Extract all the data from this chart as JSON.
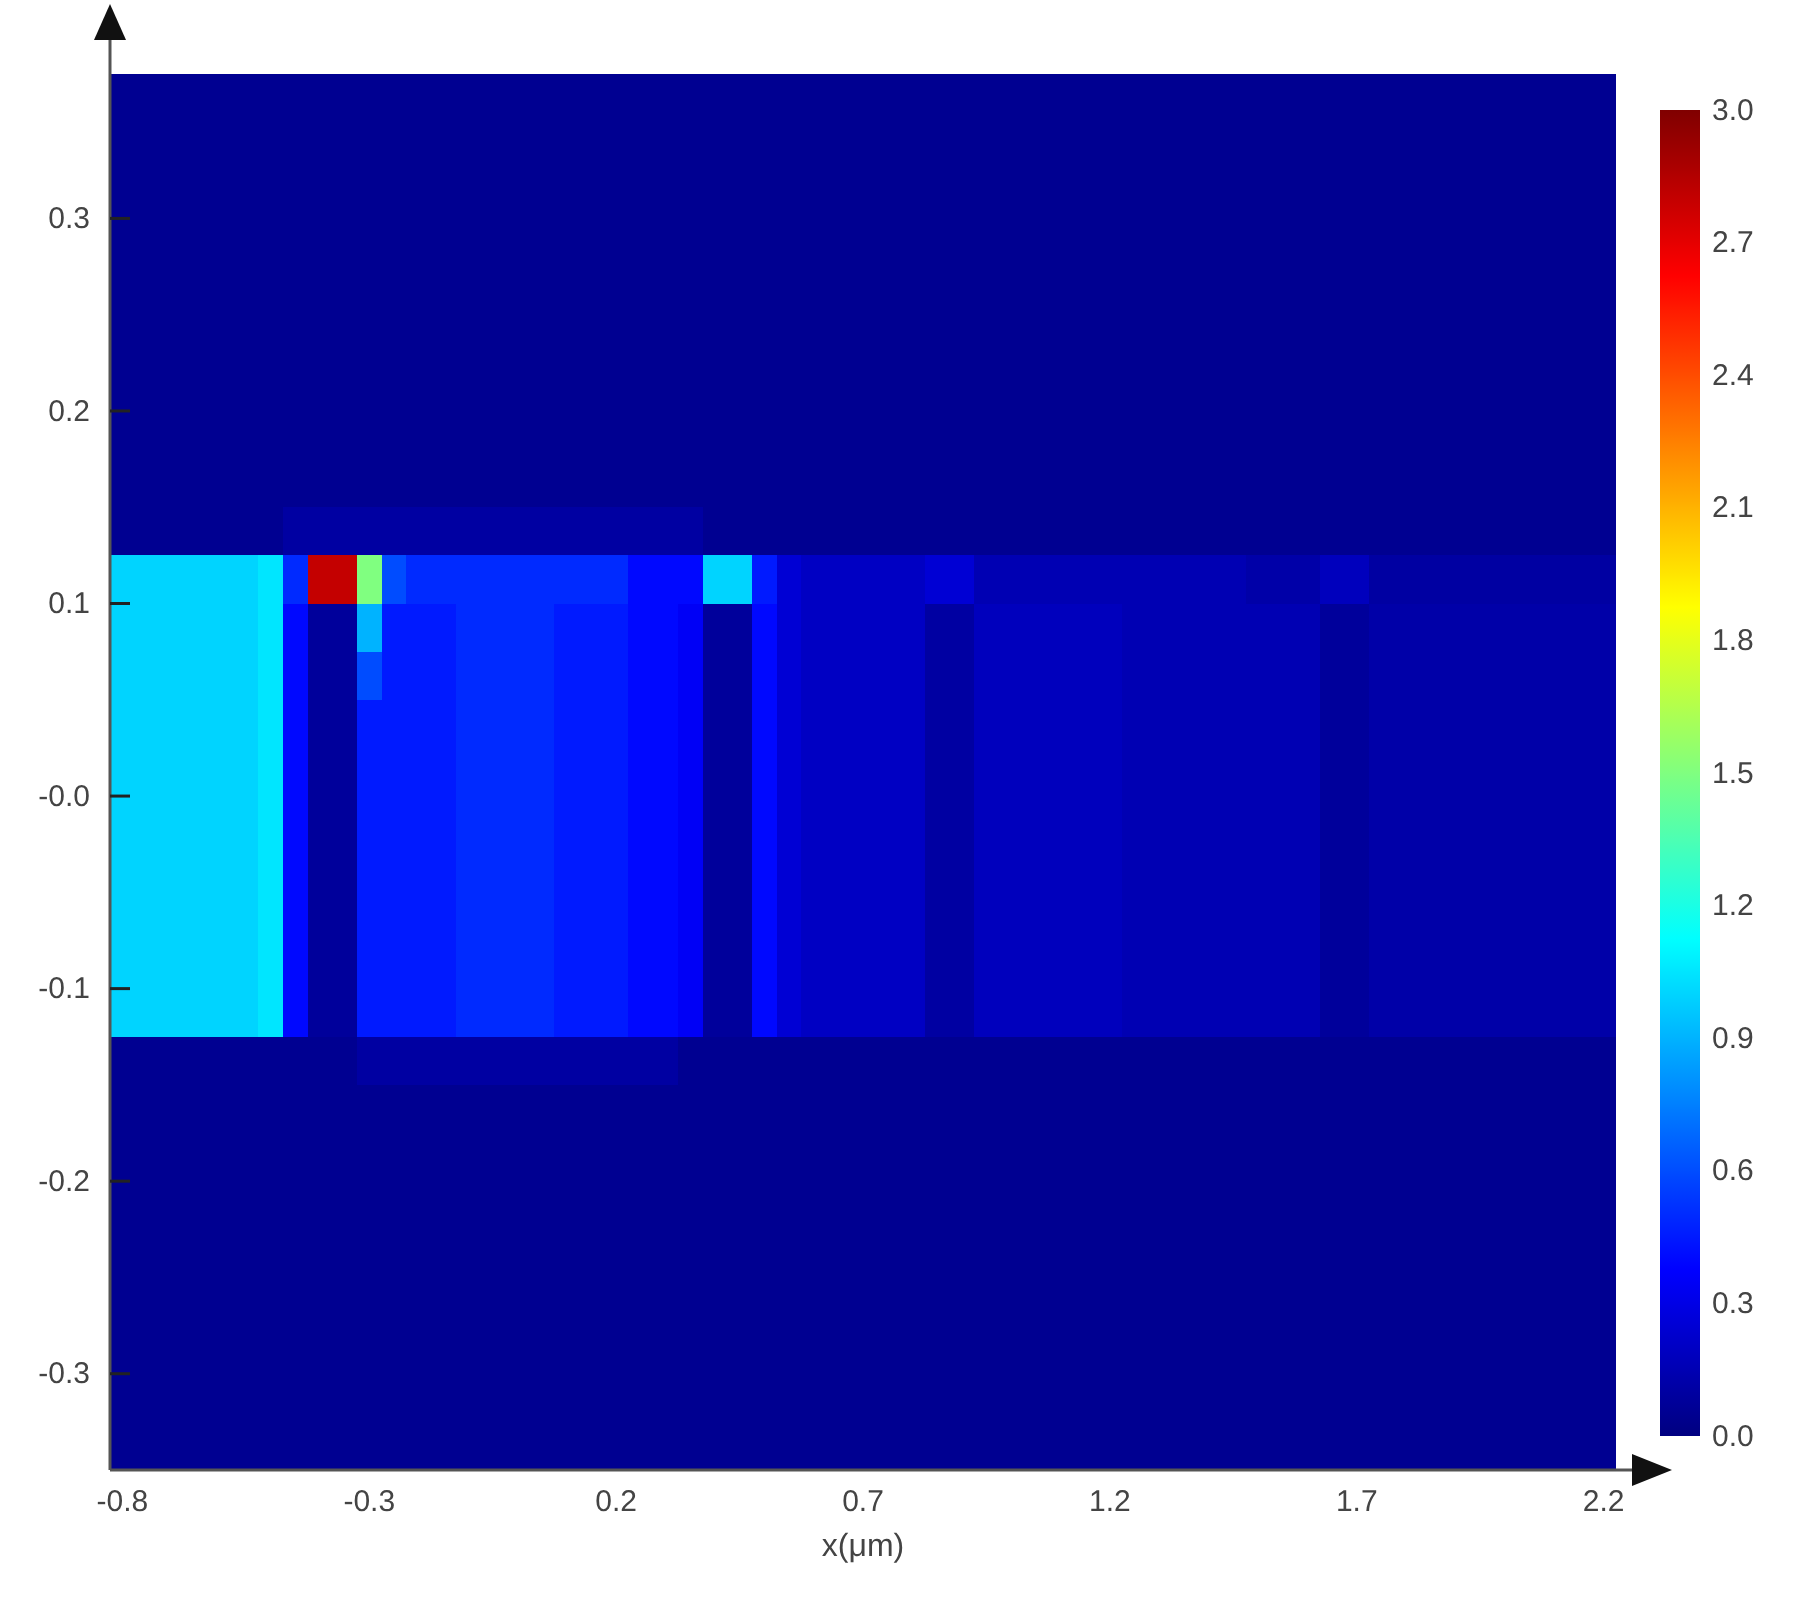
{
  "chart_data": {
    "type": "heatmap",
    "xlabel": "x(μm)",
    "x": [
      -0.8,
      -0.75,
      -0.7,
      -0.65,
      -0.6,
      -0.55,
      -0.5,
      -0.45,
      -0.4,
      -0.35,
      -0.3,
      -0.25,
      -0.2,
      -0.15,
      -0.1,
      -0.05,
      0,
      0.05,
      0.1,
      0.15,
      0.2,
      0.25,
      0.3,
      0.35,
      0.4,
      0.45,
      0.5,
      0.55,
      0.6,
      0.65,
      0.7,
      0.75,
      0.8,
      0.85,
      0.9,
      0.95,
      1,
      1.05,
      1.1,
      1.15,
      1.2,
      1.25,
      1.3,
      1.35,
      1.4,
      1.45,
      1.5,
      1.55,
      1.6,
      1.65,
      1.7,
      1.75,
      1.8,
      1.85,
      1.9,
      1.95,
      2,
      2.05,
      2.1,
      2.15,
      2.2
    ],
    "xlim": [
      -0.825,
      2.225
    ],
    "xticks": [
      -0.8,
      -0.3,
      0.2,
      0.7,
      1.2,
      1.7,
      2.2
    ],
    "ylim": [
      -0.35,
      0.375
    ],
    "yticks": [
      -0.3,
      -0.2,
      -0.1,
      {
        "value": 0,
        "label": "-0.0"
      },
      0.1,
      0.2,
      0.3
    ],
    "clim": [
      0,
      3
    ],
    "cticks": [
      {
        "value": 0,
        "label": "0.0"
      },
      0.3,
      0.6,
      0.9,
      1.2,
      1.5,
      1.8,
      2.1,
      2.4,
      2.7,
      {
        "value": 3,
        "label": "3.0"
      }
    ],
    "cells": [
      [
        0.05,
        0.05,
        0.05,
        0.05,
        0.05,
        0.05,
        0.05,
        0.05,
        0.05,
        0.05,
        0.05,
        0.05,
        0.05,
        0.05,
        0.05,
        0.05,
        0.05,
        0.05,
        0.05,
        0.05,
        0.05,
        0.05,
        0.05,
        0.05,
        0.05,
        0.05,
        0.05,
        0.05,
        0.05,
        0.05,
        0.05,
        0.05,
        0.05,
        0.05,
        0.05,
        0.05,
        0.05,
        0.05,
        0.05,
        0.05,
        0.05,
        0.05,
        0.05,
        0.05,
        0.05,
        0.05,
        0.05,
        0.05,
        0.05,
        0.05,
        0.05,
        0.05,
        0.05,
        0.05,
        0.05,
        0.05,
        0.05,
        0.05,
        0.05,
        0.05,
        0.05
      ],
      [
        0.05,
        0.05,
        0.05,
        0.05,
        0.05,
        0.05,
        0.05,
        0.05,
        0.05,
        0.05,
        0.05,
        0.05,
        0.05,
        0.05,
        0.05,
        0.05,
        0.05,
        0.05,
        0.05,
        0.05,
        0.05,
        0.05,
        0.05,
        0.05,
        0.05,
        0.05,
        0.05,
        0.05,
        0.05,
        0.05,
        0.05,
        0.05,
        0.05,
        0.05,
        0.05,
        0.05,
        0.05,
        0.05,
        0.05,
        0.05,
        0.05,
        0.05,
        0.05,
        0.05,
        0.05,
        0.05,
        0.05,
        0.05,
        0.05,
        0.05,
        0.05,
        0.05,
        0.05,
        0.05,
        0.05,
        0.05,
        0.05,
        0.05,
        0.05,
        0.05,
        0.05
      ],
      [
        0.05,
        0.05,
        0.05,
        0.05,
        0.05,
        0.05,
        0.05,
        0.05,
        0.05,
        0.05,
        0.05,
        0.05,
        0.05,
        0.05,
        0.05,
        0.05,
        0.05,
        0.05,
        0.05,
        0.05,
        0.05,
        0.05,
        0.05,
        0.05,
        0.05,
        0.05,
        0.05,
        0.05,
        0.05,
        0.05,
        0.05,
        0.05,
        0.05,
        0.05,
        0.05,
        0.05,
        0.05,
        0.05,
        0.05,
        0.05,
        0.05,
        0.05,
        0.05,
        0.05,
        0.05,
        0.05,
        0.05,
        0.05,
        0.05,
        0.05,
        0.05,
        0.05,
        0.05,
        0.05,
        0.05,
        0.05,
        0.05,
        0.05,
        0.05,
        0.05,
        0.05
      ],
      [
        0.05,
        0.05,
        0.05,
        0.05,
        0.05,
        0.05,
        0.05,
        0.05,
        0.05,
        0.05,
        0.05,
        0.05,
        0.05,
        0.05,
        0.05,
        0.05,
        0.05,
        0.05,
        0.05,
        0.05,
        0.05,
        0.05,
        0.05,
        0.05,
        0.05,
        0.05,
        0.05,
        0.05,
        0.05,
        0.05,
        0.05,
        0.05,
        0.05,
        0.05,
        0.05,
        0.05,
        0.05,
        0.05,
        0.05,
        0.05,
        0.05,
        0.05,
        0.05,
        0.05,
        0.05,
        0.05,
        0.05,
        0.05,
        0.05,
        0.05,
        0.05,
        0.05,
        0.05,
        0.05,
        0.05,
        0.05,
        0.05,
        0.05,
        0.05,
        0.05,
        0.05
      ],
      [
        0.05,
        0.05,
        0.05,
        0.05,
        0.05,
        0.05,
        0.05,
        0.05,
        0.05,
        0.05,
        0.05,
        0.05,
        0.05,
        0.05,
        0.05,
        0.05,
        0.05,
        0.05,
        0.05,
        0.05,
        0.05,
        0.05,
        0.05,
        0.05,
        0.05,
        0.05,
        0.05,
        0.05,
        0.05,
        0.05,
        0.05,
        0.05,
        0.05,
        0.05,
        0.05,
        0.05,
        0.05,
        0.05,
        0.05,
        0.05,
        0.05,
        0.05,
        0.05,
        0.05,
        0.05,
        0.05,
        0.05,
        0.05,
        0.05,
        0.05,
        0.05,
        0.05,
        0.05,
        0.05,
        0.05,
        0.05,
        0.05,
        0.05,
        0.05,
        0.05,
        0.05
      ],
      [
        0.05,
        0.05,
        0.05,
        0.05,
        0.05,
        0.05,
        0.05,
        0.05,
        0.05,
        0.05,
        0.05,
        0.05,
        0.05,
        0.05,
        0.05,
        0.05,
        0.05,
        0.05,
        0.05,
        0.05,
        0.05,
        0.05,
        0.05,
        0.05,
        0.05,
        0.05,
        0.05,
        0.05,
        0.05,
        0.05,
        0.05,
        0.05,
        0.05,
        0.05,
        0.05,
        0.05,
        0.05,
        0.05,
        0.05,
        0.05,
        0.05,
        0.05,
        0.05,
        0.05,
        0.05,
        0.05,
        0.05,
        0.05,
        0.05,
        0.05,
        0.05,
        0.05,
        0.05,
        0.05,
        0.05,
        0.05,
        0.05,
        0.05,
        0.05,
        0.05,
        0.05
      ],
      [
        0.05,
        0.05,
        0.05,
        0.05,
        0.05,
        0.05,
        0.05,
        0.05,
        0.05,
        0.05,
        0.05,
        0.05,
        0.05,
        0.05,
        0.05,
        0.05,
        0.05,
        0.05,
        0.05,
        0.05,
        0.05,
        0.05,
        0.05,
        0.05,
        0.05,
        0.05,
        0.05,
        0.05,
        0.05,
        0.05,
        0.05,
        0.05,
        0.05,
        0.05,
        0.05,
        0.05,
        0.05,
        0.05,
        0.05,
        0.05,
        0.05,
        0.05,
        0.05,
        0.05,
        0.05,
        0.05,
        0.05,
        0.05,
        0.05,
        0.05,
        0.05,
        0.05,
        0.05,
        0.05,
        0.05,
        0.05,
        0.05,
        0.05,
        0.05,
        0.05,
        0.05
      ],
      [
        0.05,
        0.05,
        0.05,
        0.05,
        0.05,
        0.05,
        0.05,
        0.05,
        0.05,
        0.05,
        0.05,
        0.05,
        0.05,
        0.05,
        0.05,
        0.05,
        0.05,
        0.05,
        0.05,
        0.05,
        0.05,
        0.05,
        0.05,
        0.05,
        0.05,
        0.05,
        0.05,
        0.05,
        0.05,
        0.05,
        0.05,
        0.05,
        0.05,
        0.05,
        0.05,
        0.05,
        0.05,
        0.05,
        0.05,
        0.05,
        0.05,
        0.05,
        0.05,
        0.05,
        0.05,
        0.05,
        0.05,
        0.05,
        0.05,
        0.05,
        0.05,
        0.05,
        0.05,
        0.05,
        0.05,
        0.05,
        0.05,
        0.05,
        0.05,
        0.05,
        0.05
      ],
      [
        0.05,
        0.05,
        0.05,
        0.05,
        0.05,
        0.05,
        0.05,
        0.05,
        0.05,
        0.05,
        0.05,
        0.05,
        0.05,
        0.05,
        0.05,
        0.05,
        0.05,
        0.05,
        0.05,
        0.05,
        0.05,
        0.05,
        0.05,
        0.05,
        0.05,
        0.05,
        0.05,
        0.05,
        0.05,
        0.05,
        0.05,
        0.05,
        0.05,
        0.05,
        0.05,
        0.05,
        0.05,
        0.05,
        0.05,
        0.05,
        0.05,
        0.05,
        0.05,
        0.05,
        0.05,
        0.05,
        0.05,
        0.05,
        0.05,
        0.05,
        0.05,
        0.05,
        0.05,
        0.05,
        0.05,
        0.05,
        0.05,
        0.05,
        0.05,
        0.05,
        0.05
      ],
      [
        0.05,
        0.05,
        0.05,
        0.05,
        0.05,
        0.05,
        0.05,
        0.1,
        0.1,
        0.1,
        0.1,
        0.1,
        0.1,
        0.1,
        0.1,
        0.1,
        0.1,
        0.1,
        0.1,
        0.1,
        0.1,
        0.1,
        0.1,
        0.1,
        0.05,
        0.05,
        0.05,
        0.05,
        0.05,
        0.05,
        0.05,
        0.05,
        0.05,
        0.05,
        0.05,
        0.05,
        0.05,
        0.05,
        0.05,
        0.05,
        0.05,
        0.05,
        0.05,
        0.05,
        0.05,
        0.05,
        0.05,
        0.05,
        0.05,
        0.05,
        0.05,
        0.05,
        0.05,
        0.05,
        0.05,
        0.05,
        0.05,
        0.05,
        0.05,
        0.05,
        0.05
      ],
      [
        1,
        1,
        1,
        1,
        1,
        1,
        1.05,
        0.5,
        2.8,
        2.8,
        1.5,
        0.6,
        0.5,
        0.5,
        0.5,
        0.5,
        0.5,
        0.5,
        0.5,
        0.5,
        0.5,
        0.4,
        0.4,
        0.4,
        1,
        1,
        0.45,
        0.25,
        0.2,
        0.2,
        0.2,
        0.2,
        0.2,
        0.25,
        0.25,
        0.15,
        0.15,
        0.15,
        0.15,
        0.15,
        0.15,
        0.15,
        0.15,
        0.15,
        0.15,
        0.15,
        0.12,
        0.12,
        0.12,
        0.18,
        0.18,
        0.1,
        0.1,
        0.1,
        0.1,
        0.1,
        0.1,
        0.1,
        0.1,
        0.1,
        0.1
      ],
      [
        1,
        1,
        1,
        1,
        1,
        1,
        1.05,
        0.4,
        0.08,
        0.08,
        0.9,
        0.45,
        0.45,
        0.45,
        0.5,
        0.5,
        0.5,
        0.5,
        0.45,
        0.45,
        0.45,
        0.4,
        0.4,
        0.35,
        0.08,
        0.08,
        0.4,
        0.25,
        0.2,
        0.2,
        0.2,
        0.2,
        0.2,
        0.1,
        0.1,
        0.18,
        0.18,
        0.18,
        0.18,
        0.18,
        0.18,
        0.15,
        0.15,
        0.15,
        0.15,
        0.15,
        0.15,
        0.15,
        0.15,
        0.08,
        0.08,
        0.12,
        0.12,
        0.12,
        0.12,
        0.12,
        0.12,
        0.12,
        0.12,
        0.12,
        0.12
      ],
      [
        1,
        1,
        1,
        1,
        1,
        1,
        1.05,
        0.4,
        0.08,
        0.08,
        0.6,
        0.45,
        0.45,
        0.45,
        0.5,
        0.5,
        0.5,
        0.5,
        0.45,
        0.45,
        0.45,
        0.4,
        0.4,
        0.35,
        0.08,
        0.08,
        0.4,
        0.25,
        0.2,
        0.2,
        0.2,
        0.2,
        0.2,
        0.1,
        0.1,
        0.18,
        0.18,
        0.18,
        0.18,
        0.18,
        0.18,
        0.15,
        0.15,
        0.15,
        0.15,
        0.15,
        0.15,
        0.15,
        0.15,
        0.08,
        0.08,
        0.12,
        0.12,
        0.12,
        0.12,
        0.12,
        0.12,
        0.12,
        0.12,
        0.12,
        0.12
      ],
      [
        1,
        1,
        1,
        1,
        1,
        1,
        1.05,
        0.4,
        0.08,
        0.08,
        0.45,
        0.45,
        0.45,
        0.45,
        0.5,
        0.5,
        0.5,
        0.5,
        0.45,
        0.45,
        0.45,
        0.4,
        0.4,
        0.35,
        0.08,
        0.08,
        0.4,
        0.25,
        0.2,
        0.2,
        0.2,
        0.2,
        0.2,
        0.1,
        0.1,
        0.18,
        0.18,
        0.18,
        0.18,
        0.18,
        0.18,
        0.15,
        0.15,
        0.15,
        0.15,
        0.15,
        0.15,
        0.15,
        0.15,
        0.08,
        0.08,
        0.12,
        0.12,
        0.12,
        0.12,
        0.12,
        0.12,
        0.12,
        0.12,
        0.12,
        0.12
      ],
      [
        1,
        1,
        1,
        1,
        1,
        1,
        1.05,
        0.4,
        0.08,
        0.08,
        0.45,
        0.45,
        0.45,
        0.45,
        0.5,
        0.5,
        0.5,
        0.5,
        0.45,
        0.45,
        0.45,
        0.4,
        0.4,
        0.35,
        0.08,
        0.08,
        0.4,
        0.25,
        0.2,
        0.2,
        0.2,
        0.2,
        0.2,
        0.1,
        0.1,
        0.18,
        0.18,
        0.18,
        0.18,
        0.18,
        0.18,
        0.15,
        0.15,
        0.15,
        0.15,
        0.15,
        0.15,
        0.15,
        0.15,
        0.08,
        0.08,
        0.12,
        0.12,
        0.12,
        0.12,
        0.12,
        0.12,
        0.12,
        0.12,
        0.12,
        0.12
      ],
      [
        1,
        1,
        1,
        1,
        1,
        1,
        1.05,
        0.4,
        0.08,
        0.08,
        0.45,
        0.45,
        0.45,
        0.45,
        0.5,
        0.5,
        0.5,
        0.5,
        0.45,
        0.45,
        0.45,
        0.4,
        0.4,
        0.35,
        0.08,
        0.08,
        0.4,
        0.25,
        0.2,
        0.2,
        0.2,
        0.2,
        0.2,
        0.1,
        0.1,
        0.18,
        0.18,
        0.18,
        0.18,
        0.18,
        0.18,
        0.15,
        0.15,
        0.15,
        0.15,
        0.15,
        0.15,
        0.15,
        0.15,
        0.08,
        0.08,
        0.12,
        0.12,
        0.12,
        0.12,
        0.12,
        0.12,
        0.12,
        0.12,
        0.12,
        0.12
      ],
      [
        1,
        1,
        1,
        1,
        1,
        1,
        1.05,
        0.4,
        0.08,
        0.08,
        0.45,
        0.45,
        0.45,
        0.45,
        0.5,
        0.5,
        0.5,
        0.5,
        0.45,
        0.45,
        0.45,
        0.4,
        0.4,
        0.35,
        0.08,
        0.08,
        0.4,
        0.25,
        0.2,
        0.2,
        0.2,
        0.2,
        0.2,
        0.1,
        0.1,
        0.18,
        0.18,
        0.18,
        0.18,
        0.18,
        0.18,
        0.15,
        0.15,
        0.15,
        0.15,
        0.15,
        0.15,
        0.15,
        0.15,
        0.08,
        0.08,
        0.12,
        0.12,
        0.12,
        0.12,
        0.12,
        0.12,
        0.12,
        0.12,
        0.12,
        0.12
      ],
      [
        1,
        1,
        1,
        1,
        1,
        1,
        1.05,
        0.4,
        0.08,
        0.08,
        0.45,
        0.45,
        0.45,
        0.45,
        0.5,
        0.5,
        0.5,
        0.5,
        0.45,
        0.45,
        0.45,
        0.4,
        0.4,
        0.35,
        0.08,
        0.08,
        0.4,
        0.25,
        0.2,
        0.2,
        0.2,
        0.2,
        0.2,
        0.1,
        0.1,
        0.18,
        0.18,
        0.18,
        0.18,
        0.18,
        0.18,
        0.15,
        0.15,
        0.15,
        0.15,
        0.15,
        0.15,
        0.15,
        0.15,
        0.08,
        0.08,
        0.12,
        0.12,
        0.12,
        0.12,
        0.12,
        0.12,
        0.12,
        0.12,
        0.12,
        0.12
      ],
      [
        1,
        1,
        1,
        1,
        1,
        1,
        1.05,
        0.4,
        0.08,
        0.08,
        0.45,
        0.45,
        0.45,
        0.45,
        0.5,
        0.5,
        0.5,
        0.5,
        0.45,
        0.45,
        0.45,
        0.4,
        0.4,
        0.35,
        0.08,
        0.08,
        0.4,
        0.25,
        0.2,
        0.2,
        0.2,
        0.2,
        0.2,
        0.1,
        0.1,
        0.18,
        0.18,
        0.18,
        0.18,
        0.18,
        0.18,
        0.15,
        0.15,
        0.15,
        0.15,
        0.15,
        0.15,
        0.15,
        0.15,
        0.08,
        0.08,
        0.12,
        0.12,
        0.12,
        0.12,
        0.12,
        0.12,
        0.12,
        0.12,
        0.12,
        0.12
      ],
      [
        1,
        1,
        1,
        1,
        1,
        1,
        1.05,
        0.4,
        0.08,
        0.08,
        0.45,
        0.45,
        0.45,
        0.45,
        0.5,
        0.5,
        0.5,
        0.5,
        0.45,
        0.45,
        0.45,
        0.4,
        0.4,
        0.35,
        0.08,
        0.08,
        0.4,
        0.25,
        0.2,
        0.2,
        0.2,
        0.2,
        0.2,
        0.1,
        0.1,
        0.18,
        0.18,
        0.18,
        0.18,
        0.18,
        0.18,
        0.15,
        0.15,
        0.15,
        0.15,
        0.15,
        0.15,
        0.15,
        0.15,
        0.08,
        0.08,
        0.12,
        0.12,
        0.12,
        0.12,
        0.12,
        0.12,
        0.12,
        0.12,
        0.12,
        0.12
      ],
      [
        0.05,
        0.05,
        0.05,
        0.05,
        0.05,
        0.05,
        0.05,
        0.05,
        0.05,
        0.05,
        0.1,
        0.1,
        0.1,
        0.1,
        0.1,
        0.1,
        0.1,
        0.1,
        0.1,
        0.1,
        0.1,
        0.1,
        0.1,
        0.05,
        0.05,
        0.05,
        0.05,
        0.05,
        0.05,
        0.05,
        0.05,
        0.05,
        0.05,
        0.05,
        0.05,
        0.05,
        0.05,
        0.05,
        0.05,
        0.05,
        0.05,
        0.05,
        0.05,
        0.05,
        0.05,
        0.05,
        0.05,
        0.05,
        0.05,
        0.05,
        0.05,
        0.05,
        0.05,
        0.05,
        0.05,
        0.05,
        0.05,
        0.05,
        0.05,
        0.05,
        0.05
      ],
      [
        0.05,
        0.05,
        0.05,
        0.05,
        0.05,
        0.05,
        0.05,
        0.05,
        0.05,
        0.05,
        0.05,
        0.05,
        0.05,
        0.05,
        0.05,
        0.05,
        0.05,
        0.05,
        0.05,
        0.05,
        0.05,
        0.05,
        0.05,
        0.05,
        0.05,
        0.05,
        0.05,
        0.05,
        0.05,
        0.05,
        0.05,
        0.05,
        0.05,
        0.05,
        0.05,
        0.05,
        0.05,
        0.05,
        0.05,
        0.05,
        0.05,
        0.05,
        0.05,
        0.05,
        0.05,
        0.05,
        0.05,
        0.05,
        0.05,
        0.05,
        0.05,
        0.05,
        0.05,
        0.05,
        0.05,
        0.05,
        0.05,
        0.05,
        0.05,
        0.05,
        0.05
      ],
      [
        0.05,
        0.05,
        0.05,
        0.05,
        0.05,
        0.05,
        0.05,
        0.05,
        0.05,
        0.05,
        0.05,
        0.05,
        0.05,
        0.05,
        0.05,
        0.05,
        0.05,
        0.05,
        0.05,
        0.05,
        0.05,
        0.05,
        0.05,
        0.05,
        0.05,
        0.05,
        0.05,
        0.05,
        0.05,
        0.05,
        0.05,
        0.05,
        0.05,
        0.05,
        0.05,
        0.05,
        0.05,
        0.05,
        0.05,
        0.05,
        0.05,
        0.05,
        0.05,
        0.05,
        0.05,
        0.05,
        0.05,
        0.05,
        0.05,
        0.05,
        0.05,
        0.05,
        0.05,
        0.05,
        0.05,
        0.05,
        0.05,
        0.05,
        0.05,
        0.05,
        0.05
      ],
      [
        0.05,
        0.05,
        0.05,
        0.05,
        0.05,
        0.05,
        0.05,
        0.05,
        0.05,
        0.05,
        0.05,
        0.05,
        0.05,
        0.05,
        0.05,
        0.05,
        0.05,
        0.05,
        0.05,
        0.05,
        0.05,
        0.05,
        0.05,
        0.05,
        0.05,
        0.05,
        0.05,
        0.05,
        0.05,
        0.05,
        0.05,
        0.05,
        0.05,
        0.05,
        0.05,
        0.05,
        0.05,
        0.05,
        0.05,
        0.05,
        0.05,
        0.05,
        0.05,
        0.05,
        0.05,
        0.05,
        0.05,
        0.05,
        0.05,
        0.05,
        0.05,
        0.05,
        0.05,
        0.05,
        0.05,
        0.05,
        0.05,
        0.05,
        0.05,
        0.05,
        0.05
      ],
      [
        0.05,
        0.05,
        0.05,
        0.05,
        0.05,
        0.05,
        0.05,
        0.05,
        0.05,
        0.05,
        0.05,
        0.05,
        0.05,
        0.05,
        0.05,
        0.05,
        0.05,
        0.05,
        0.05,
        0.05,
        0.05,
        0.05,
        0.05,
        0.05,
        0.05,
        0.05,
        0.05,
        0.05,
        0.05,
        0.05,
        0.05,
        0.05,
        0.05,
        0.05,
        0.05,
        0.05,
        0.05,
        0.05,
        0.05,
        0.05,
        0.05,
        0.05,
        0.05,
        0.05,
        0.05,
        0.05,
        0.05,
        0.05,
        0.05,
        0.05,
        0.05,
        0.05,
        0.05,
        0.05,
        0.05,
        0.05,
        0.05,
        0.05,
        0.05,
        0.05,
        0.05
      ],
      [
        0.05,
        0.05,
        0.05,
        0.05,
        0.05,
        0.05,
        0.05,
        0.05,
        0.05,
        0.05,
        0.05,
        0.05,
        0.05,
        0.05,
        0.05,
        0.05,
        0.05,
        0.05,
        0.05,
        0.05,
        0.05,
        0.05,
        0.05,
        0.05,
        0.05,
        0.05,
        0.05,
        0.05,
        0.05,
        0.05,
        0.05,
        0.05,
        0.05,
        0.05,
        0.05,
        0.05,
        0.05,
        0.05,
        0.05,
        0.05,
        0.05,
        0.05,
        0.05,
        0.05,
        0.05,
        0.05,
        0.05,
        0.05,
        0.05,
        0.05,
        0.05,
        0.05,
        0.05,
        0.05,
        0.05,
        0.05,
        0.05,
        0.05,
        0.05,
        0.05,
        0.05
      ],
      [
        0.05,
        0.05,
        0.05,
        0.05,
        0.05,
        0.05,
        0.05,
        0.05,
        0.05,
        0.05,
        0.05,
        0.05,
        0.05,
        0.05,
        0.05,
        0.05,
        0.05,
        0.05,
        0.05,
        0.05,
        0.05,
        0.05,
        0.05,
        0.05,
        0.05,
        0.05,
        0.05,
        0.05,
        0.05,
        0.05,
        0.05,
        0.05,
        0.05,
        0.05,
        0.05,
        0.05,
        0.05,
        0.05,
        0.05,
        0.05,
        0.05,
        0.05,
        0.05,
        0.05,
        0.05,
        0.05,
        0.05,
        0.05,
        0.05,
        0.05,
        0.05,
        0.05,
        0.05,
        0.05,
        0.05,
        0.05,
        0.05,
        0.05,
        0.05,
        0.05,
        0.05
      ],
      [
        0.05,
        0.05,
        0.05,
        0.05,
        0.05,
        0.05,
        0.05,
        0.05,
        0.05,
        0.05,
        0.05,
        0.05,
        0.05,
        0.05,
        0.05,
        0.05,
        0.05,
        0.05,
        0.05,
        0.05,
        0.05,
        0.05,
        0.05,
        0.05,
        0.05,
        0.05,
        0.05,
        0.05,
        0.05,
        0.05,
        0.05,
        0.05,
        0.05,
        0.05,
        0.05,
        0.05,
        0.05,
        0.05,
        0.05,
        0.05,
        0.05,
        0.05,
        0.05,
        0.05,
        0.05,
        0.05,
        0.05,
        0.05,
        0.05,
        0.05,
        0.05,
        0.05,
        0.05,
        0.05,
        0.05,
        0.05,
        0.05,
        0.05,
        0.05,
        0.05,
        0.05
      ],
      [
        0.05,
        0.05,
        0.05,
        0.05,
        0.05,
        0.05,
        0.05,
        0.05,
        0.05,
        0.05,
        0.05,
        0.05,
        0.05,
        0.05,
        0.05,
        0.05,
        0.05,
        0.05,
        0.05,
        0.05,
        0.05,
        0.05,
        0.05,
        0.05,
        0.05,
        0.05,
        0.05,
        0.05,
        0.05,
        0.05,
        0.05,
        0.05,
        0.05,
        0.05,
        0.05,
        0.05,
        0.05,
        0.05,
        0.05,
        0.05,
        0.05,
        0.05,
        0.05,
        0.05,
        0.05,
        0.05,
        0.05,
        0.05,
        0.05,
        0.05,
        0.05,
        0.05,
        0.05,
        0.05,
        0.05,
        0.05,
        0.05,
        0.05,
        0.05,
        0.05,
        0.05
      ]
    ]
  }
}
